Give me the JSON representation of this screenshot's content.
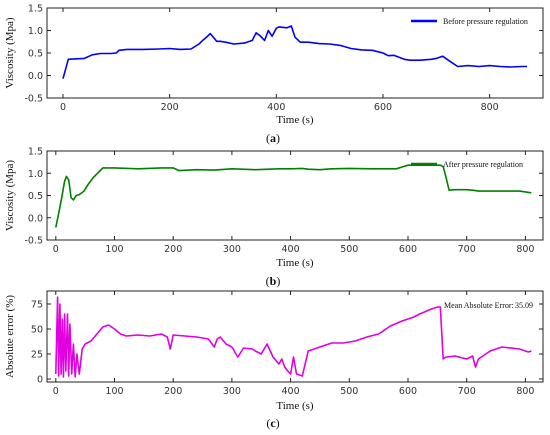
{
  "chart_data": [
    {
      "type": "line",
      "caption_letter": "a",
      "xlabel": "Time (s)",
      "ylabel": "Viscosity (Mpa)",
      "xlim": [
        -30,
        900
      ],
      "ylim": [
        -0.5,
        1.5
      ],
      "xticks": [
        0,
        200,
        400,
        600,
        800
      ],
      "yticks": [
        -0.5,
        0.0,
        0.5,
        1.0,
        1.5
      ],
      "ytick_labels": [
        "-0.5",
        "0.0",
        "0.5",
        "1.0",
        "1.5"
      ],
      "legend_position": "top-right",
      "series": [
        {
          "name": "Before pressure regulation",
          "color": "#0000ff",
          "x": [
            0,
            5,
            10,
            20,
            40,
            55,
            70,
            90,
            100,
            105,
            120,
            150,
            180,
            200,
            220,
            240,
            255,
            262,
            270,
            276,
            282,
            288,
            295,
            305,
            320,
            340,
            355,
            362,
            370,
            378,
            385,
            392,
            400,
            405,
            420,
            428,
            435,
            445,
            460,
            480,
            500,
            520,
            540,
            560,
            580,
            600,
            610,
            620,
            640,
            650,
            670,
            690,
            700,
            705,
            712,
            720,
            740,
            760,
            780,
            800,
            820,
            840,
            860,
            870
          ],
          "y": [
            -0.07,
            0.15,
            0.36,
            0.37,
            0.38,
            0.46,
            0.49,
            0.49,
            0.5,
            0.56,
            0.58,
            0.58,
            0.59,
            0.6,
            0.58,
            0.59,
            0.7,
            0.78,
            0.86,
            0.93,
            0.85,
            0.76,
            0.76,
            0.74,
            0.7,
            0.72,
            0.78,
            0.95,
            0.88,
            0.78,
            1.0,
            0.87,
            1.05,
            1.08,
            1.06,
            1.1,
            0.85,
            0.74,
            0.74,
            0.71,
            0.7,
            0.67,
            0.6,
            0.57,
            0.56,
            0.5,
            0.44,
            0.45,
            0.36,
            0.34,
            0.34,
            0.36,
            0.38,
            0.4,
            0.43,
            0.36,
            0.2,
            0.22,
            0.2,
            0.22,
            0.2,
            0.19,
            0.2,
            0.2
          ]
        }
      ]
    },
    {
      "type": "line",
      "caption_letter": "b",
      "xlabel": "Time (s)",
      "ylabel": "Viscosity (Mpa)",
      "xlim": [
        -15,
        830
      ],
      "ylim": [
        -0.5,
        1.5
      ],
      "xticks": [
        0,
        100,
        200,
        300,
        400,
        500,
        600,
        700,
        800
      ],
      "yticks": [
        -0.5,
        0.0,
        0.5,
        1.0,
        1.5
      ],
      "ytick_labels": [
        "-0.5",
        "0.0",
        "0.5",
        "1.0",
        "1.5"
      ],
      "legend_position": "top-right",
      "series": [
        {
          "name": "After pressure regulation",
          "color": "#008000",
          "x": [
            0,
            5,
            10,
            15,
            18,
            22,
            26,
            30,
            35,
            40,
            48,
            55,
            65,
            75,
            80,
            90,
            100,
            140,
            180,
            200,
            210,
            240,
            270,
            300,
            340,
            380,
            400,
            420,
            430,
            450,
            470,
            500,
            540,
            580,
            590,
            600,
            640,
            650,
            655,
            660,
            665,
            670,
            680,
            700,
            710,
            720,
            760,
            790,
            810
          ],
          "y": [
            -0.22,
            0.1,
            0.45,
            0.82,
            0.93,
            0.85,
            0.45,
            0.4,
            0.5,
            0.52,
            0.6,
            0.75,
            0.92,
            1.05,
            1.12,
            1.12,
            1.12,
            1.1,
            1.12,
            1.12,
            1.06,
            1.08,
            1.07,
            1.1,
            1.08,
            1.1,
            1.1,
            1.11,
            1.09,
            1.08,
            1.1,
            1.11,
            1.1,
            1.1,
            1.14,
            1.18,
            1.18,
            1.18,
            1.18,
            1.15,
            0.9,
            0.62,
            0.63,
            0.63,
            0.62,
            0.6,
            0.6,
            0.6,
            0.56
          ]
        }
      ]
    },
    {
      "type": "line",
      "caption_letter": "c",
      "xlabel": "Time (s)",
      "ylabel": "Absolute error (%)",
      "xlim": [
        -15,
        830
      ],
      "ylim": [
        -3,
        88
      ],
      "xticks": [
        0,
        100,
        200,
        300,
        400,
        500,
        600,
        700,
        800
      ],
      "yticks": [
        0,
        25,
        50,
        75
      ],
      "ytick_labels": [
        "0",
        "25",
        "50",
        "75"
      ],
      "annotation_label": "Mean Absolute Error:",
      "annotation_value": "35.09",
      "series": [
        {
          "name": "",
          "color": "#e000e0",
          "x": [
            0,
            3,
            5,
            7,
            9,
            11,
            13,
            15,
            17,
            20,
            22,
            24,
            27,
            30,
            33,
            36,
            40,
            45,
            50,
            60,
            70,
            80,
            90,
            100,
            110,
            120,
            140,
            160,
            180,
            190,
            195,
            200,
            220,
            240,
            260,
            270,
            275,
            280,
            290,
            300,
            310,
            320,
            335,
            340,
            350,
            360,
            370,
            380,
            385,
            390,
            395,
            400,
            405,
            410,
            420,
            430,
            440,
            450,
            470,
            490,
            510,
            530,
            550,
            570,
            590,
            610,
            620,
            640,
            650,
            655,
            660,
            665,
            680,
            700,
            710,
            715,
            720,
            740,
            760,
            790,
            800,
            805,
            810
          ],
          "y": [
            5,
            82,
            3,
            75,
            5,
            60,
            2,
            65,
            8,
            65,
            3,
            55,
            5,
            35,
            2,
            25,
            5,
            30,
            35,
            38,
            45,
            52,
            54,
            50,
            45,
            43,
            44,
            43,
            45,
            42,
            30,
            44,
            43,
            42,
            40,
            32,
            40,
            42,
            35,
            32,
            22,
            31,
            30,
            28,
            25,
            35,
            22,
            15,
            20,
            12,
            8,
            5,
            22,
            5,
            3,
            28,
            30,
            32,
            36,
            36,
            38,
            42,
            45,
            53,
            58,
            62,
            65,
            70,
            72,
            72,
            20,
            22,
            23,
            20,
            23,
            12,
            20,
            28,
            32,
            30,
            28,
            27,
            28
          ]
        }
      ]
    }
  ]
}
